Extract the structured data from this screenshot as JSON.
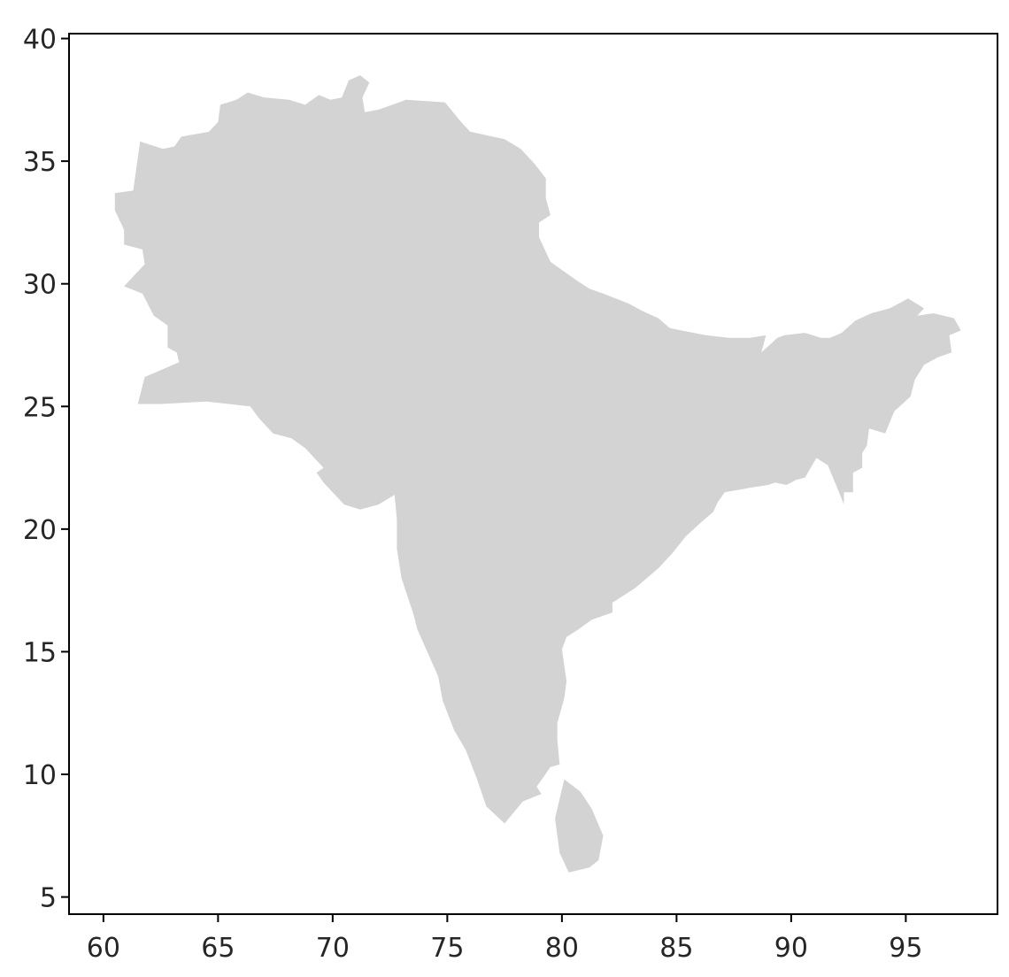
{
  "chart_data": {
    "type": "map",
    "title": "",
    "xlabel": "",
    "ylabel": "",
    "xlim": [
      58.5,
      99.0
    ],
    "ylim": [
      4.3,
      40.2
    ],
    "fill_color": "#d3d3d3",
    "frame_color": "#000000",
    "xticks": [
      60,
      65,
      70,
      75,
      80,
      85,
      90,
      95
    ],
    "yticks": [
      5,
      10,
      15,
      20,
      25,
      30,
      35,
      40
    ],
    "xtick_labels": [
      "60",
      "65",
      "70",
      "75",
      "80",
      "85",
      "90",
      "95"
    ],
    "ytick_labels": [
      "5",
      "10",
      "15",
      "20",
      "25",
      "30",
      "35",
      "40"
    ],
    "regions": [
      {
        "name": "south-asia-mainland",
        "coordinates": [
          [
            61.3,
            33.8
          ],
          [
            61.6,
            35.8
          ],
          [
            62.6,
            35.5
          ],
          [
            63.1,
            35.6
          ],
          [
            63.4,
            36.0
          ],
          [
            64.6,
            36.2
          ],
          [
            65.0,
            36.6
          ],
          [
            65.1,
            37.3
          ],
          [
            65.8,
            37.5
          ],
          [
            66.3,
            37.8
          ],
          [
            67.0,
            37.6
          ],
          [
            68.1,
            37.5
          ],
          [
            68.8,
            37.3
          ],
          [
            69.4,
            37.7
          ],
          [
            69.9,
            37.5
          ],
          [
            70.4,
            37.6
          ],
          [
            70.7,
            38.3
          ],
          [
            71.2,
            38.5
          ],
          [
            71.6,
            38.2
          ],
          [
            71.3,
            37.6
          ],
          [
            71.4,
            37.0
          ],
          [
            72.0,
            37.1
          ],
          [
            72.6,
            37.3
          ],
          [
            73.2,
            37.5
          ],
          [
            74.9,
            37.4
          ],
          [
            75.6,
            36.6
          ],
          [
            76.0,
            36.2
          ],
          [
            77.5,
            35.9
          ],
          [
            78.2,
            35.5
          ],
          [
            78.8,
            34.9
          ],
          [
            79.3,
            34.3
          ],
          [
            79.3,
            33.5
          ],
          [
            79.5,
            32.8
          ],
          [
            79.0,
            32.5
          ],
          [
            79.0,
            31.9
          ],
          [
            79.5,
            30.9
          ],
          [
            80.7,
            30.1
          ],
          [
            81.2,
            29.8
          ],
          [
            81.8,
            29.6
          ],
          [
            82.9,
            29.2
          ],
          [
            83.5,
            28.9
          ],
          [
            84.2,
            28.6
          ],
          [
            84.7,
            28.2
          ],
          [
            85.2,
            28.1
          ],
          [
            86.3,
            27.9
          ],
          [
            87.3,
            27.8
          ],
          [
            88.2,
            27.8
          ],
          [
            88.9,
            27.9
          ],
          [
            88.7,
            27.2
          ],
          [
            89.4,
            27.8
          ],
          [
            89.7,
            27.9
          ],
          [
            90.6,
            28.0
          ],
          [
            91.3,
            27.8
          ],
          [
            91.7,
            27.8
          ],
          [
            92.2,
            28.0
          ],
          [
            92.8,
            28.5
          ],
          [
            93.5,
            28.8
          ],
          [
            94.3,
            29.0
          ],
          [
            95.1,
            29.4
          ],
          [
            95.8,
            29.0
          ],
          [
            95.5,
            28.7
          ],
          [
            96.2,
            28.8
          ],
          [
            97.1,
            28.6
          ],
          [
            97.4,
            28.1
          ],
          [
            96.9,
            27.9
          ],
          [
            97.0,
            27.2
          ],
          [
            96.4,
            27.0
          ],
          [
            95.8,
            26.7
          ],
          [
            95.4,
            26.1
          ],
          [
            95.2,
            25.4
          ],
          [
            94.5,
            24.8
          ],
          [
            94.1,
            23.9
          ],
          [
            93.4,
            24.1
          ],
          [
            93.3,
            23.4
          ],
          [
            93.1,
            23.1
          ],
          [
            93.1,
            22.5
          ],
          [
            92.7,
            22.3
          ],
          [
            92.7,
            21.5
          ],
          [
            92.3,
            21.5
          ],
          [
            92.3,
            21.0
          ],
          [
            92.0,
            21.7
          ],
          [
            91.6,
            22.6
          ],
          [
            91.1,
            22.9
          ],
          [
            90.6,
            22.1
          ],
          [
            90.2,
            22.0
          ],
          [
            89.8,
            21.8
          ],
          [
            89.3,
            21.9
          ],
          [
            89.0,
            21.8
          ],
          [
            88.3,
            21.7
          ],
          [
            87.1,
            21.5
          ],
          [
            86.8,
            21.1
          ],
          [
            86.6,
            20.7
          ],
          [
            86.1,
            20.3
          ],
          [
            85.4,
            19.7
          ],
          [
            84.8,
            19.0
          ],
          [
            84.2,
            18.4
          ],
          [
            83.2,
            17.6
          ],
          [
            82.2,
            17.0
          ],
          [
            82.2,
            16.6
          ],
          [
            81.3,
            16.3
          ],
          [
            80.7,
            15.9
          ],
          [
            80.2,
            15.6
          ],
          [
            80.0,
            15.1
          ],
          [
            80.2,
            13.8
          ],
          [
            80.1,
            13.1
          ],
          [
            79.8,
            12.1
          ],
          [
            79.8,
            11.4
          ],
          [
            79.9,
            10.4
          ],
          [
            79.5,
            10.3
          ],
          [
            78.9,
            9.5
          ],
          [
            79.1,
            9.2
          ],
          [
            78.3,
            8.9
          ],
          [
            77.5,
            8.0
          ],
          [
            76.7,
            8.7
          ],
          [
            76.3,
            9.8
          ],
          [
            75.8,
            11.0
          ],
          [
            75.3,
            11.8
          ],
          [
            74.8,
            13.0
          ],
          [
            74.6,
            14.0
          ],
          [
            73.7,
            15.9
          ],
          [
            73.5,
            16.6
          ],
          [
            73.0,
            18.0
          ],
          [
            72.8,
            19.2
          ],
          [
            72.8,
            20.4
          ],
          [
            72.7,
            21.4
          ],
          [
            72.0,
            21.0
          ],
          [
            71.2,
            20.8
          ],
          [
            70.5,
            21.0
          ],
          [
            69.6,
            21.9
          ],
          [
            69.3,
            22.3
          ],
          [
            69.6,
            22.5
          ],
          [
            69.3,
            22.8
          ],
          [
            68.8,
            23.3
          ],
          [
            68.2,
            23.7
          ],
          [
            67.4,
            23.9
          ],
          [
            66.8,
            24.5
          ],
          [
            66.4,
            25.0
          ],
          [
            64.5,
            25.2
          ],
          [
            62.5,
            25.1
          ],
          [
            61.5,
            25.1
          ],
          [
            61.8,
            26.2
          ],
          [
            63.3,
            26.8
          ],
          [
            63.2,
            27.2
          ],
          [
            62.8,
            27.4
          ],
          [
            62.8,
            28.3
          ],
          [
            62.2,
            28.7
          ],
          [
            61.7,
            29.6
          ],
          [
            60.9,
            29.9
          ],
          [
            61.8,
            30.8
          ],
          [
            61.7,
            31.4
          ],
          [
            60.9,
            31.6
          ],
          [
            60.9,
            32.2
          ],
          [
            60.5,
            33.0
          ],
          [
            60.5,
            33.7
          ],
          [
            61.3,
            33.8
          ]
        ]
      },
      {
        "name": "sri-lanka",
        "coordinates": [
          [
            81.8,
            7.5
          ],
          [
            81.6,
            6.5
          ],
          [
            81.2,
            6.2
          ],
          [
            80.3,
            6.0
          ],
          [
            79.9,
            6.8
          ],
          [
            79.7,
            8.2
          ],
          [
            80.1,
            9.8
          ],
          [
            80.8,
            9.3
          ],
          [
            81.3,
            8.6
          ],
          [
            81.8,
            7.5
          ]
        ]
      }
    ]
  }
}
